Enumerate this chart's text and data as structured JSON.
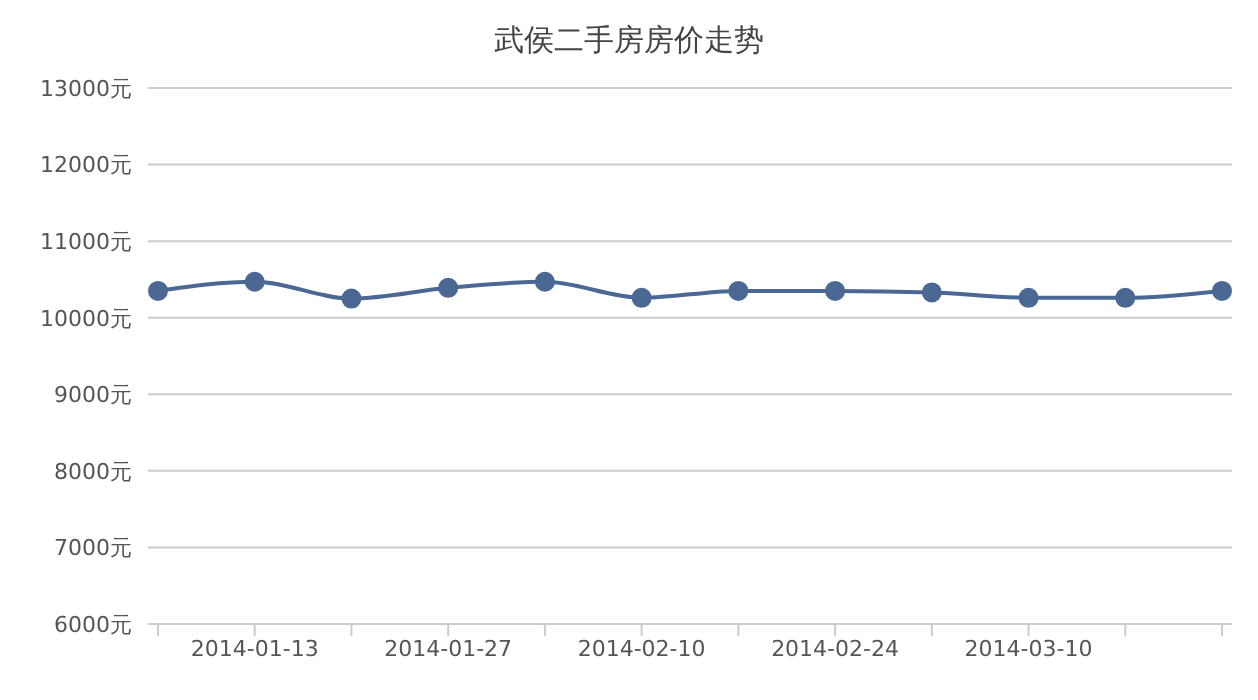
{
  "chart_data": {
    "type": "line",
    "title": "武侯二手房房价走势",
    "categories": [
      null,
      "2014-01-13",
      null,
      "2014-01-27",
      null,
      "2014-02-10",
      null,
      "2014-02-24",
      null,
      "2014-03-10",
      null,
      null
    ],
    "series": [
      {
        "color": "#4a6893",
        "values": [
          10350,
          10470,
          10250,
          10390,
          10470,
          10260,
          10350,
          10350,
          10330,
          10260,
          10260,
          10350
        ]
      }
    ],
    "ylim": [
      6000,
      13000
    ],
    "yticks": [
      {
        "value": 6000,
        "label": "6000元"
      },
      {
        "value": 7000,
        "label": "7000元"
      },
      {
        "value": 8000,
        "label": "8000元"
      },
      {
        "value": 9000,
        "label": "9000元"
      },
      {
        "value": 10000,
        "label": "10000元"
      },
      {
        "value": 11000,
        "label": "11000元"
      },
      {
        "value": 12000,
        "label": "12000元"
      },
      {
        "value": 13000,
        "label": "13000元"
      }
    ],
    "grid": "y",
    "marker": "circle"
  }
}
